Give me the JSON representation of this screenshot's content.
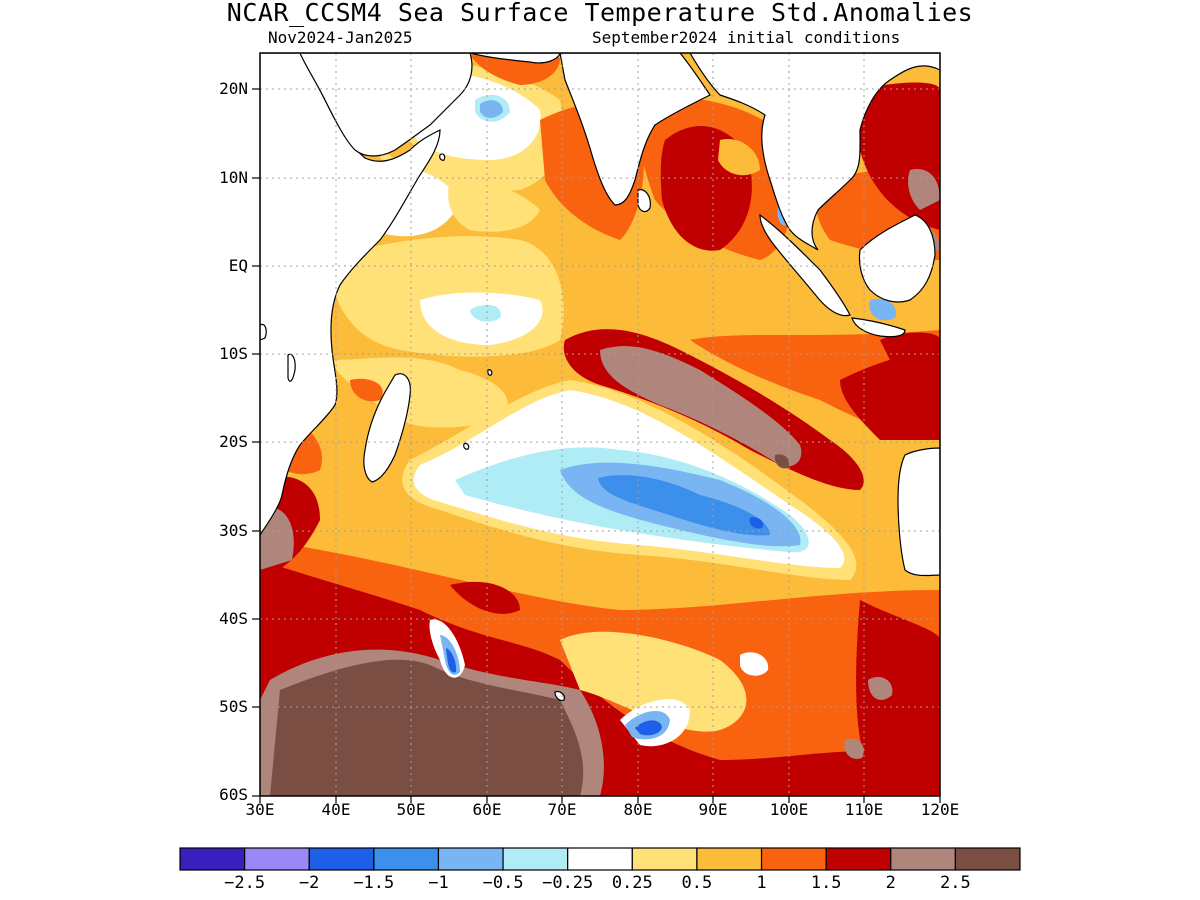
{
  "header": {
    "title": "NCAR_CCSM4 Sea Surface Temperature Std.Anomalies",
    "period": "Nov2024-Jan2025",
    "init": "September2024 initial conditions"
  },
  "map": {
    "lon_range": [
      30,
      120
    ],
    "lat_range": [
      -60,
      24
    ],
    "grid": true,
    "lat_ticks": [
      "20N",
      "10N",
      "EQ",
      "10S",
      "20S",
      "30S",
      "40S",
      "50S",
      "60S"
    ],
    "lon_ticks": [
      "30E",
      "40E",
      "50E",
      "60E",
      "70E",
      "80E",
      "90E",
      "100E",
      "110E",
      "120E"
    ]
  },
  "colorbar": {
    "colors": [
      "#3a1fbe",
      "#9b87f5",
      "#1e5fe8",
      "#3c8fea",
      "#78b5f2",
      "#b0ecf6",
      "#ffffff",
      "#ffe178",
      "#fdbb3a",
      "#f9620f",
      "#c00000",
      "#af857c",
      "#7a4e43"
    ],
    "labels": [
      "-2.5",
      "-2",
      "-1.5",
      "-1",
      "-0.5",
      "-0.25",
      "0.25",
      "0.5",
      "1",
      "1.5",
      "2",
      "2.5"
    ]
  }
}
